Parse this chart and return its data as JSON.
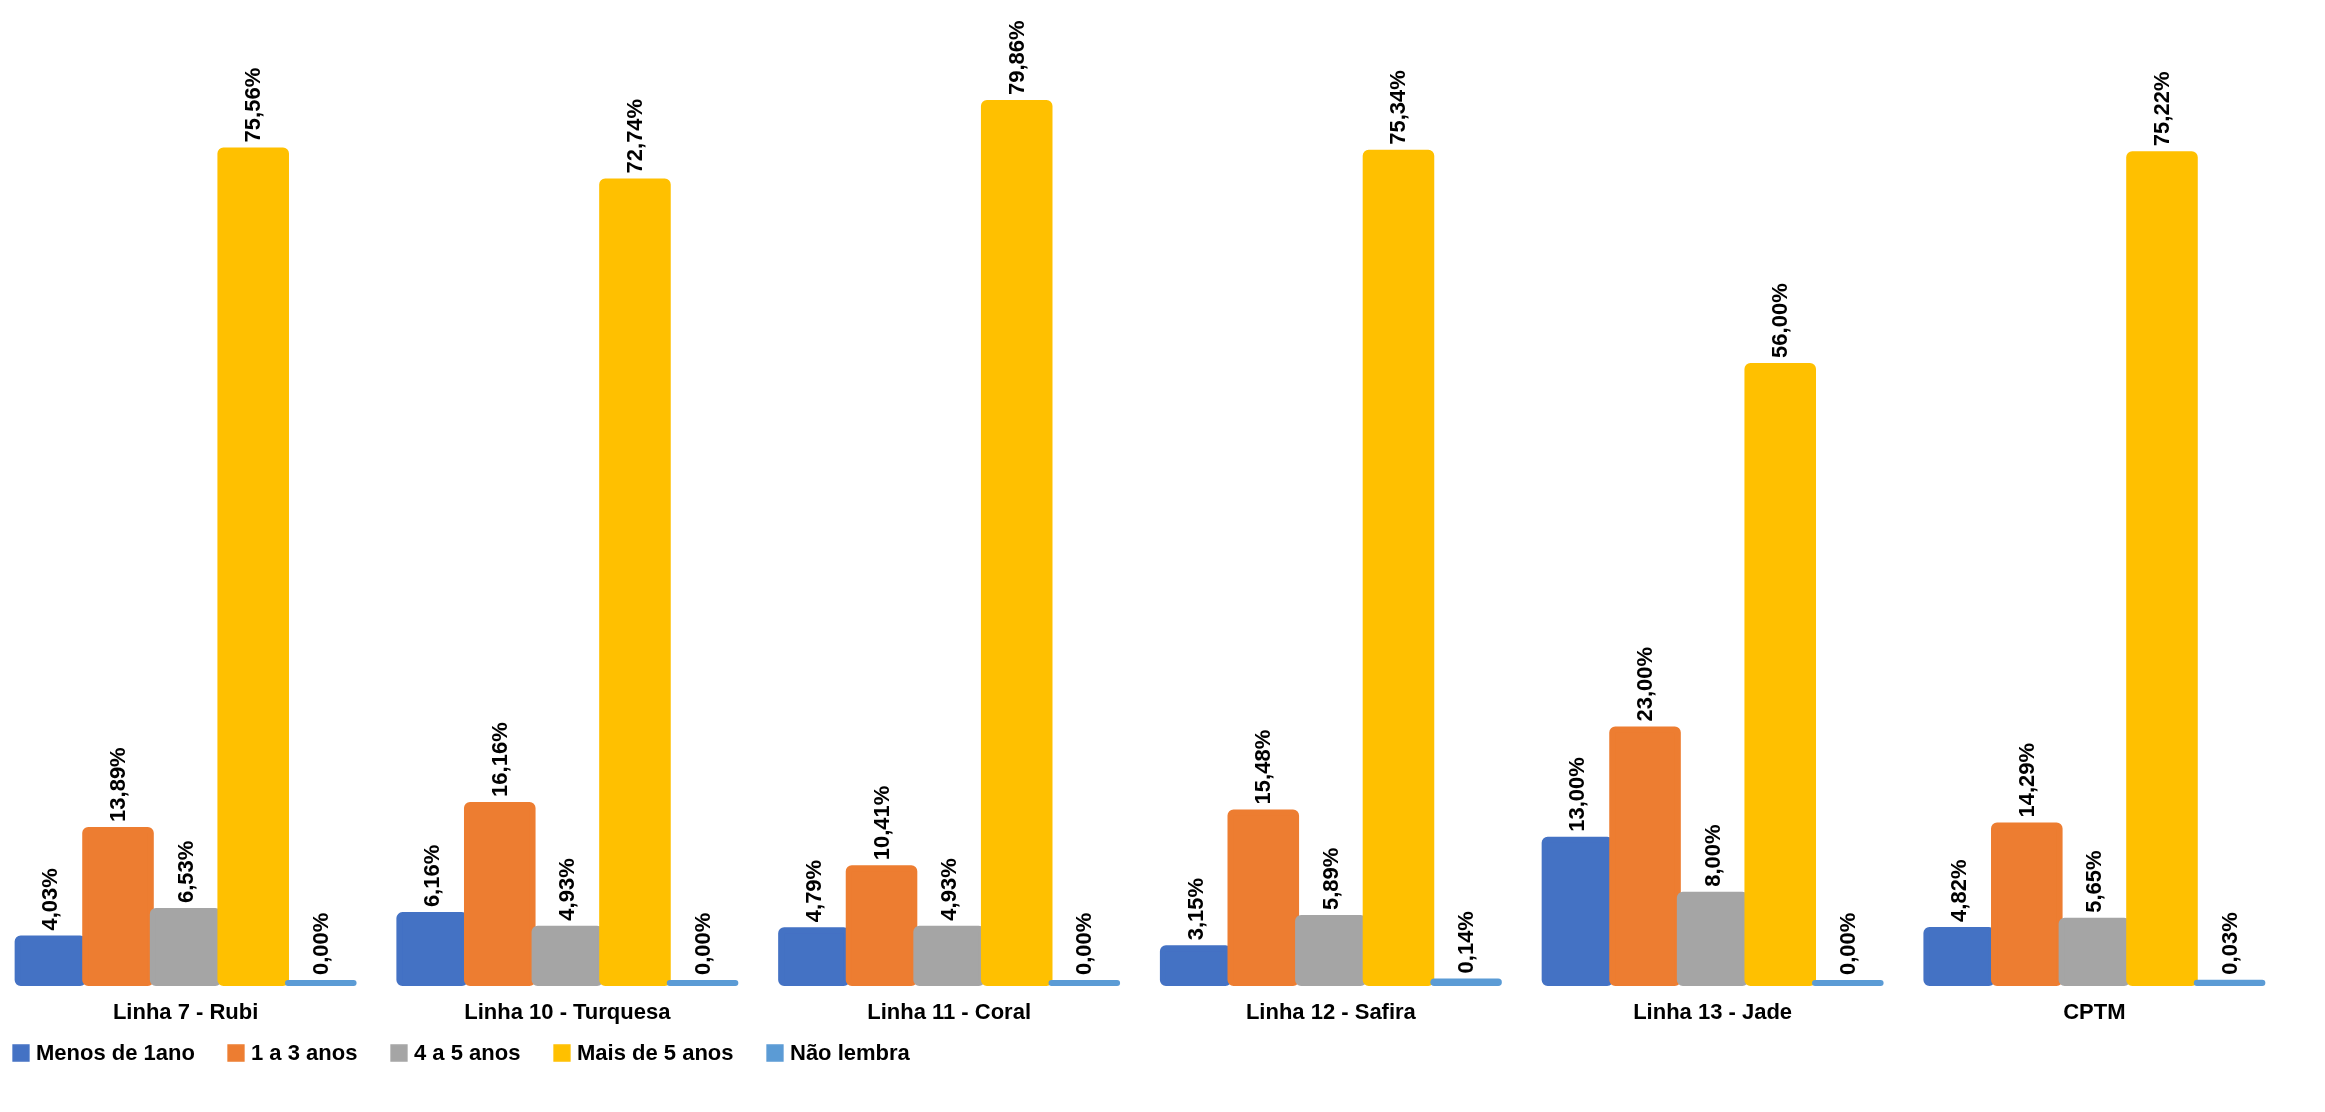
{
  "chart_data": {
    "type": "bar",
    "categories": [
      "Linha 7 - Rubi",
      "Linha 10 - Turquesa",
      "Linha 11 - Coral",
      "Linha 12 - Safira",
      "Linha 13 - Jade",
      "CPTM"
    ],
    "series": [
      {
        "name": "Menos de 1ano",
        "color": "#4472c4",
        "values": [
          4.03,
          6.16,
          4.79,
          3.15,
          13.0,
          4.82
        ],
        "value_labels": [
          "4,03%",
          "6,16%",
          "4,79%",
          "3,15%",
          "13,00%",
          "4,82%"
        ]
      },
      {
        "name": "1 a 3 anos",
        "color": "#ed7d31",
        "values": [
          13.89,
          16.16,
          10.41,
          15.48,
          23.0,
          14.29
        ],
        "value_labels": [
          "13,89%",
          "16,16%",
          "10,41%",
          "15,48%",
          "23,00%",
          "14,29%"
        ]
      },
      {
        "name": "4 a 5 anos",
        "color": "#a5a5a5",
        "values": [
          6.53,
          4.93,
          4.93,
          5.89,
          8.0,
          5.65
        ],
        "value_labels": [
          "6,53%",
          "4,93%",
          "4,93%",
          "5,89%",
          "8,00%",
          "5,65%"
        ]
      },
      {
        "name": "Mais de 5 anos",
        "color": "#ffc000",
        "values": [
          75.56,
          72.74,
          79.86,
          75.34,
          56.0,
          75.22
        ],
        "value_labels": [
          "75,56%",
          "72,74%",
          "79,86%",
          "75,34%",
          "56,00%",
          "75,22%"
        ]
      },
      {
        "name": "Não lembra",
        "color": "#5b9bd5",
        "values": [
          0.0,
          0.0,
          0.0,
          0.14,
          0.0,
          0.03
        ],
        "value_labels": [
          "0,00%",
          "0,00%",
          "0,00%",
          "0,14%",
          "0,00%",
          "0,03%"
        ]
      }
    ],
    "tick_labels": "x",
    "legend": "bottom"
  }
}
